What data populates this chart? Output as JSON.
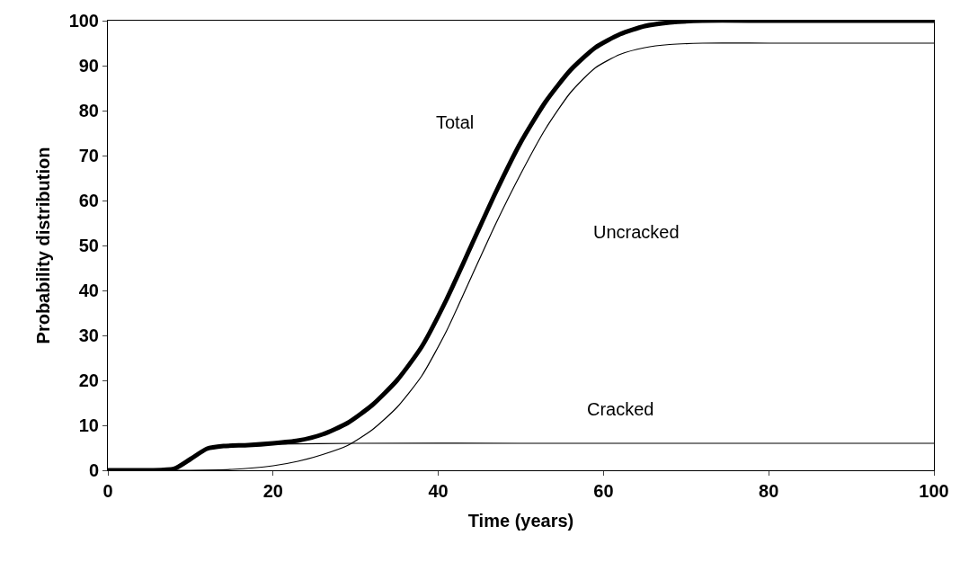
{
  "chart_data": {
    "type": "line",
    "xlabel": "Time (years)",
    "ylabel": "Probability distribution",
    "xlim": [
      0,
      100
    ],
    "ylim": [
      0,
      100
    ],
    "xticks": [
      0,
      20,
      40,
      60,
      80,
      100
    ],
    "yticks": [
      0,
      10,
      20,
      30,
      40,
      50,
      60,
      70,
      80,
      90,
      100
    ],
    "marker": "none",
    "line_style": "solid",
    "series": [
      {
        "color": "#000000",
        "x": [
          0,
          5,
          8,
          10,
          12,
          14,
          17,
          20,
          23,
          26,
          29,
          32,
          35,
          38,
          41,
          44,
          47,
          50,
          53,
          56,
          59,
          62,
          65,
          68,
          72,
          80,
          100
        ],
        "values": [
          0,
          0,
          0.3,
          2.5,
          4.8,
          5.4,
          5.6,
          6,
          6.6,
          8,
          10.5,
          14.5,
          20,
          27.5,
          38,
          50,
          62,
          73,
          82,
          89,
          94,
          97,
          98.8,
          99.6,
          100,
          100,
          100
        ]
      },
      {
        "color": "#000000",
        "x": [
          0,
          10,
          15,
          20,
          23,
          26,
          29,
          32,
          35,
          38,
          41,
          44,
          47,
          50,
          53,
          56,
          59,
          62,
          65,
          68,
          72,
          80,
          100
        ],
        "values": [
          0,
          0,
          0.2,
          1,
          2,
          3.5,
          5.5,
          9,
          14,
          21,
          31,
          43,
          55,
          66,
          76,
          84,
          89.5,
          92.5,
          94,
          94.7,
          95,
          95,
          95
        ]
      },
      {
        "color": "#000000",
        "x": [
          0,
          5,
          8,
          10,
          12,
          14,
          17,
          20,
          30,
          50,
          100
        ],
        "values": [
          0,
          0,
          0.3,
          2.5,
          4.6,
          5.2,
          5.5,
          5.8,
          6,
          6,
          6
        ]
      }
    ],
    "annotations": [
      "Total",
      "Uncracked",
      "Cracked"
    ]
  }
}
